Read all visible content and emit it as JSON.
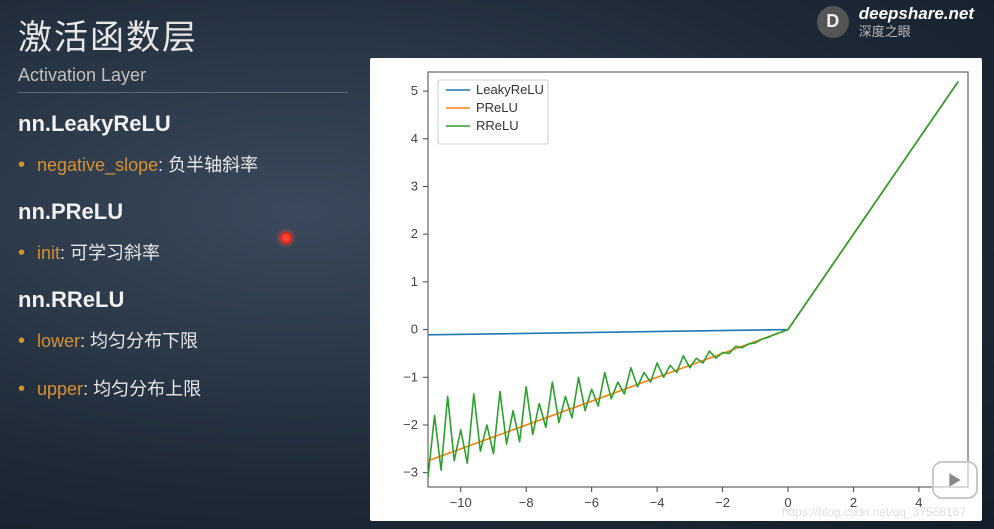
{
  "brand": {
    "name": "deepshare.net",
    "tagline": "深度之眼",
    "letter": "D"
  },
  "title": {
    "cn": "激活函数层",
    "en": "Activation Layer"
  },
  "sections": [
    {
      "head": "nn.LeakyReLU",
      "items": [
        {
          "param": "negative_slope",
          "desc": "负半轴斜率"
        }
      ]
    },
    {
      "head": "nn.PReLU",
      "items": [
        {
          "param": "init",
          "desc": "可学习斜率"
        }
      ]
    },
    {
      "head": "nn.RReLU",
      "items": [
        {
          "param": "lower",
          "desc": "均匀分布下限"
        },
        {
          "param": "upper",
          "desc": "均匀分布上限"
        }
      ]
    }
  ],
  "watermark": "https://blog.csdn.net/qq_37568167",
  "play_label": "play",
  "chart": {
    "type": "line",
    "background_color": "#ffffff",
    "spine_color": "#444444",
    "tick_color": "#444444",
    "tick_fontsize": 13,
    "xlim": [
      -11,
      5.5
    ],
    "ylim": [
      -3.3,
      5.4
    ],
    "xticks": [
      -10,
      -8,
      -6,
      -4,
      -2,
      0,
      2,
      4
    ],
    "yticks": [
      -3,
      -2,
      -1,
      0,
      1,
      2,
      3,
      4,
      5
    ],
    "line_width": 1.6,
    "legend": {
      "position": "upper-left",
      "border_color": "#cccccc",
      "bg_color": "#ffffff",
      "fontsize": 13,
      "items": [
        {
          "label": "LeakyReLU",
          "color": "#1f77b4"
        },
        {
          "label": "PReLU",
          "color": "#ff7f0e"
        },
        {
          "label": "RReLU",
          "color": "#2ca02c"
        }
      ]
    },
    "series": {
      "leaky": {
        "color": "#1f77b4",
        "neg_slope": 0.01,
        "x0": -11,
        "x1": 5.2
      },
      "prelu": {
        "color": "#ff7f0e",
        "neg_slope": 0.25,
        "x0": -11,
        "x1": 5.2
      },
      "rrelu": {
        "color": "#2ca02c",
        "x0": -11,
        "x1": 5.2,
        "points_neg": [
          [
            -11.0,
            -3.1
          ],
          [
            -10.8,
            -1.8
          ],
          [
            -10.6,
            -2.95
          ],
          [
            -10.4,
            -1.4
          ],
          [
            -10.2,
            -2.75
          ],
          [
            -10.0,
            -2.1
          ],
          [
            -9.8,
            -2.8
          ],
          [
            -9.6,
            -1.35
          ],
          [
            -9.4,
            -2.55
          ],
          [
            -9.2,
            -2.0
          ],
          [
            -9.0,
            -2.6
          ],
          [
            -8.8,
            -1.3
          ],
          [
            -8.6,
            -2.4
          ],
          [
            -8.4,
            -1.7
          ],
          [
            -8.2,
            -2.35
          ],
          [
            -8.0,
            -1.2
          ],
          [
            -7.8,
            -2.2
          ],
          [
            -7.6,
            -1.55
          ],
          [
            -7.4,
            -2.05
          ],
          [
            -7.2,
            -1.1
          ],
          [
            -7.0,
            -1.95
          ],
          [
            -6.8,
            -1.4
          ],
          [
            -6.6,
            -1.85
          ],
          [
            -6.4,
            -1.0
          ],
          [
            -6.2,
            -1.7
          ],
          [
            -6.0,
            -1.25
          ],
          [
            -5.8,
            -1.6
          ],
          [
            -5.6,
            -0.9
          ],
          [
            -5.4,
            -1.45
          ],
          [
            -5.2,
            -1.1
          ],
          [
            -5.0,
            -1.35
          ],
          [
            -4.8,
            -0.8
          ],
          [
            -4.6,
            -1.2
          ],
          [
            -4.4,
            -0.9
          ],
          [
            -4.2,
            -1.1
          ],
          [
            -4.0,
            -0.7
          ],
          [
            -3.8,
            -1.0
          ],
          [
            -3.6,
            -0.75
          ],
          [
            -3.4,
            -0.9
          ],
          [
            -3.2,
            -0.55
          ],
          [
            -3.0,
            -0.8
          ],
          [
            -2.8,
            -0.6
          ],
          [
            -2.6,
            -0.7
          ],
          [
            -2.4,
            -0.45
          ],
          [
            -2.2,
            -0.6
          ],
          [
            -2.0,
            -0.48
          ],
          [
            -1.8,
            -0.5
          ],
          [
            -1.6,
            -0.35
          ],
          [
            -1.4,
            -0.38
          ],
          [
            -1.2,
            -0.3
          ],
          [
            -1.0,
            -0.28
          ],
          [
            -0.8,
            -0.2
          ],
          [
            -0.6,
            -0.16
          ],
          [
            -0.4,
            -0.1
          ],
          [
            -0.2,
            -0.05
          ],
          [
            0.0,
            0.0
          ]
        ]
      }
    }
  }
}
